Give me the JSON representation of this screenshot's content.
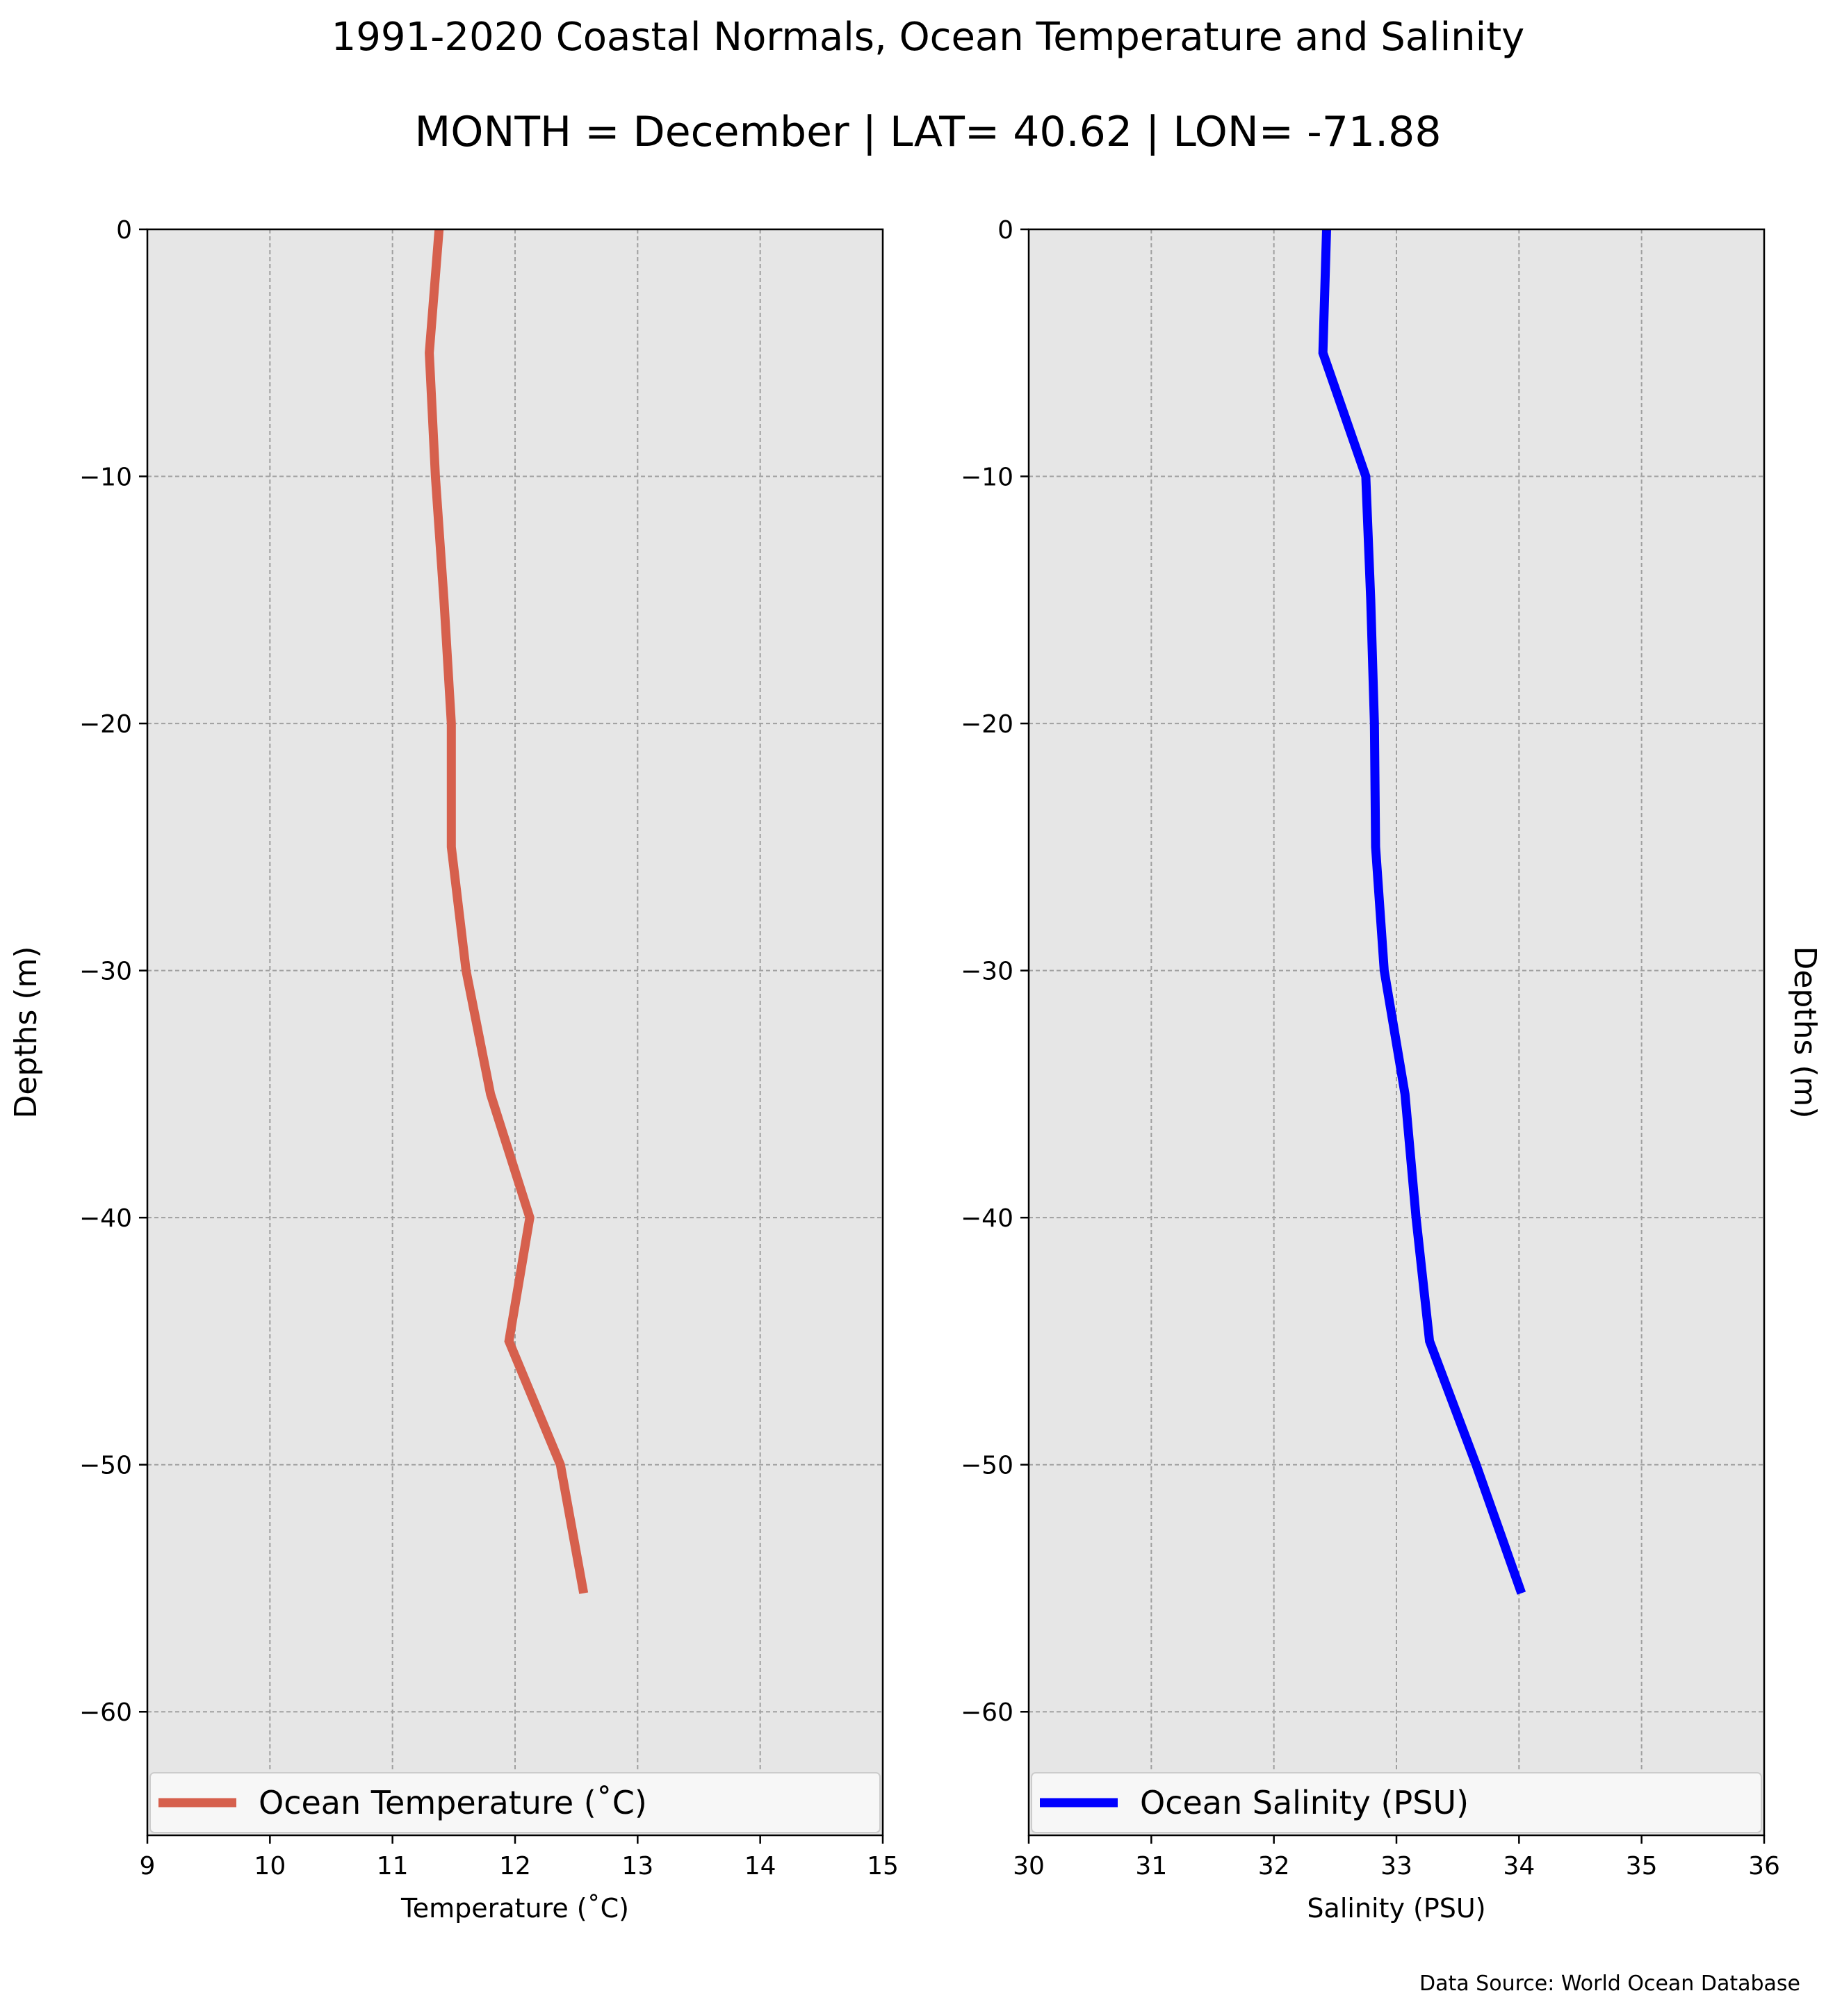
{
  "figure": {
    "title": "1991-2020 Coastal Normals, Ocean Temperature and Salinity",
    "subtitle": "MONTH = December | LAT= 40.62 | LON= -71.88",
    "source": "Data Source: World Ocean Database"
  },
  "chart_data": [
    {
      "type": "line",
      "orientation": "vertical-profile",
      "xlabel": "Temperature ($^\\circ$C)",
      "xlabel_display": "Temperature (˚C)",
      "ylabel": "Depths (m)",
      "ylabel_side": "left",
      "xlim": [
        9,
        15
      ],
      "ylim": [
        -65,
        0
      ],
      "xticks": [
        9,
        10,
        11,
        12,
        13,
        14,
        15
      ],
      "yticks": [
        0,
        -10,
        -20,
        -30,
        -40,
        -50,
        -60
      ],
      "ytick_labels": [
        "0",
        "−10",
        "−20",
        "−30",
        "−40",
        "−50",
        "−60"
      ],
      "grid": true,
      "legend_position": "lower-center",
      "background": "#e6e6e6",
      "series": [
        {
          "name": "Ocean Temperature (˚C)",
          "color": "#d6604d",
          "points": [
            {
              "x": 11.38,
              "y": 0
            },
            {
              "x": 11.3,
              "y": -5
            },
            {
              "x": 11.35,
              "y": -10
            },
            {
              "x": 11.42,
              "y": -15
            },
            {
              "x": 11.48,
              "y": -20
            },
            {
              "x": 11.48,
              "y": -25
            },
            {
              "x": 11.6,
              "y": -30
            },
            {
              "x": 11.8,
              "y": -35
            },
            {
              "x": 12.12,
              "y": -40
            },
            {
              "x": 11.95,
              "y": -45
            },
            {
              "x": 12.37,
              "y": -50
            },
            {
              "x": 12.56,
              "y": -55.2
            }
          ]
        }
      ]
    },
    {
      "type": "line",
      "orientation": "vertical-profile",
      "xlabel": "Salinity (PSU)",
      "ylabel": "Depths (m)",
      "ylabel_side": "right",
      "xlim": [
        30,
        36
      ],
      "ylim": [
        -65,
        0
      ],
      "xticks": [
        30,
        31,
        32,
        33,
        34,
        35,
        36
      ],
      "yticks": [
        0,
        -10,
        -20,
        -30,
        -40,
        -50,
        -60
      ],
      "ytick_labels": [
        "0",
        "−10",
        "−20",
        "−30",
        "−40",
        "−50",
        "−60"
      ],
      "grid": true,
      "legend_position": "lower-center",
      "background": "#e6e6e6",
      "series": [
        {
          "name": "Ocean Salinity (PSU)",
          "color": "#0000ff",
          "points": [
            {
              "x": 32.43,
              "y": 0
            },
            {
              "x": 32.4,
              "y": -5
            },
            {
              "x": 32.75,
              "y": -10
            },
            {
              "x": 32.79,
              "y": -15
            },
            {
              "x": 32.82,
              "y": -20
            },
            {
              "x": 32.83,
              "y": -25
            },
            {
              "x": 32.9,
              "y": -30
            },
            {
              "x": 33.07,
              "y": -35
            },
            {
              "x": 33.16,
              "y": -40
            },
            {
              "x": 33.27,
              "y": -45
            },
            {
              "x": 33.65,
              "y": -50
            },
            {
              "x": 34.02,
              "y": -55.2
            }
          ]
        }
      ]
    }
  ]
}
